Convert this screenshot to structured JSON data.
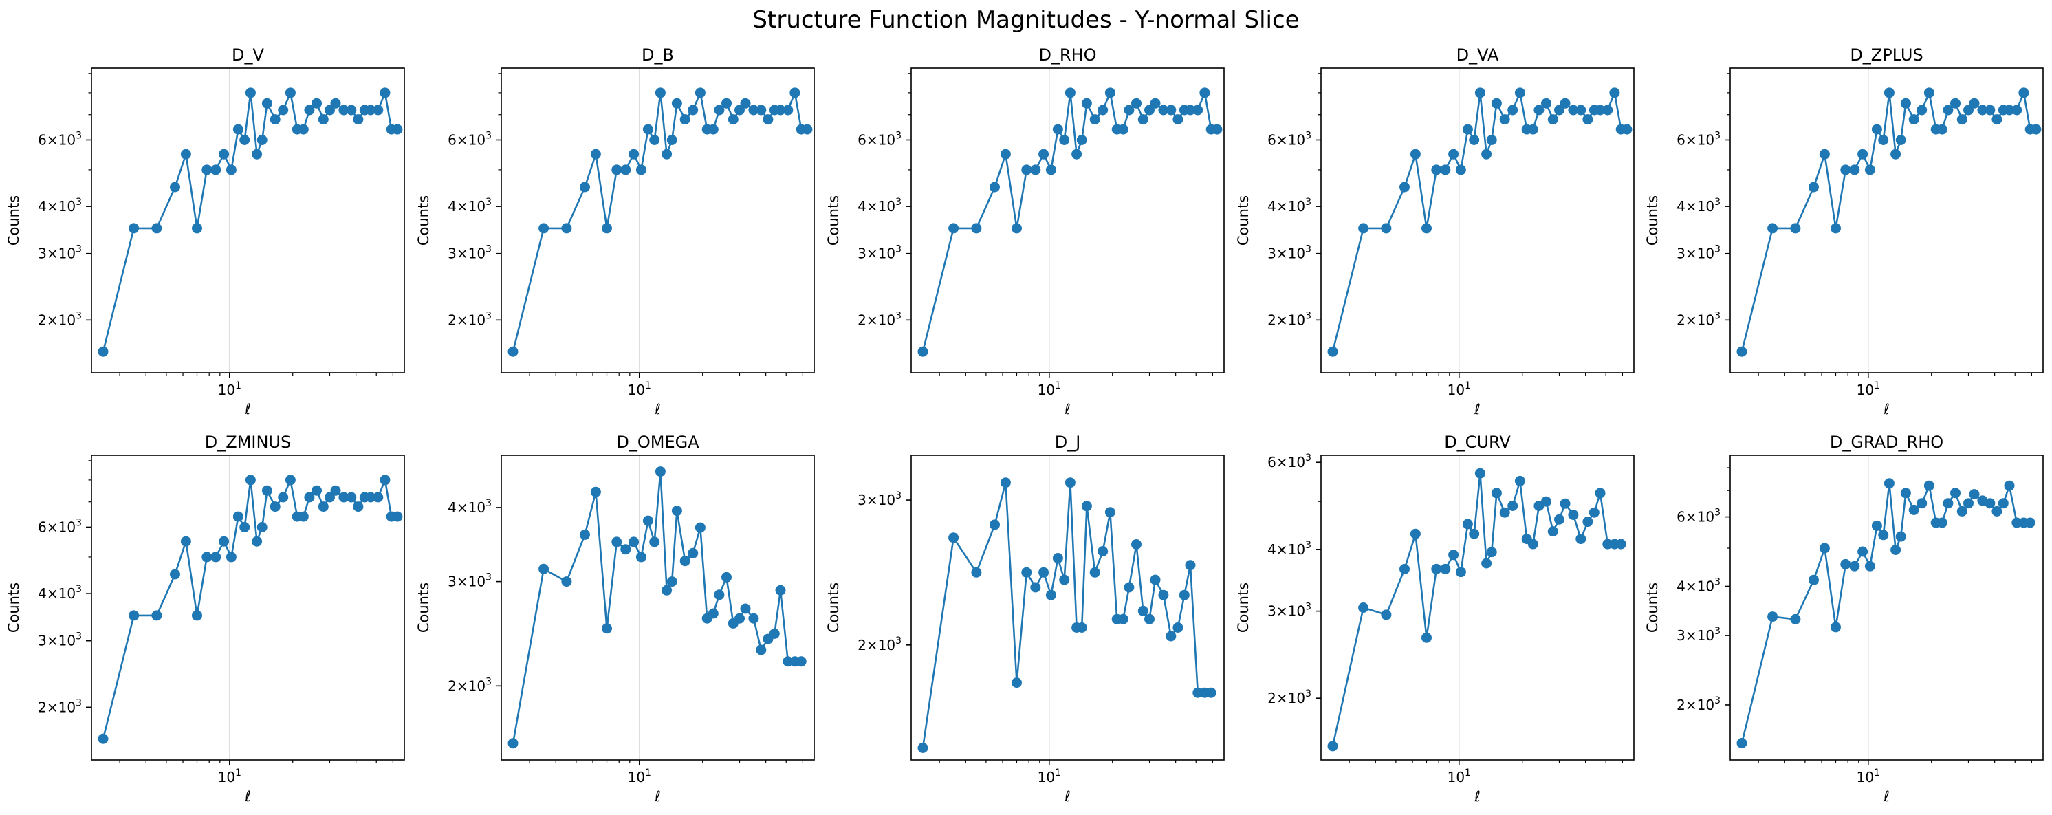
{
  "figure": {
    "title": "Structure Function Magnitudes - Y-normal Slice"
  },
  "chart_data": [
    {
      "type": "line",
      "title": "D_V",
      "xlabel": "ℓ",
      "ylabel": "Counts",
      "xscale": "log",
      "yscale": "log",
      "xlim": [
        2.2,
        68
      ],
      "ylim": [
        1450,
        9300
      ],
      "x_ticks": [
        {
          "value": 10,
          "base": "10",
          "exp": "1"
        }
      ],
      "y_ticks": [
        {
          "value": 2000,
          "base": "2×10",
          "exp": "3"
        },
        {
          "value": 3000,
          "base": "3×10",
          "exp": "3"
        },
        {
          "value": 4000,
          "base": "4×10",
          "exp": "3"
        },
        {
          "value": 6000,
          "base": "6×10",
          "exp": "3"
        }
      ],
      "vgrid": [
        10
      ],
      "color": "#1f77b4",
      "x": [
        2.5,
        3.5,
        4.5,
        5.5,
        6.2,
        7.0,
        7.8,
        8.6,
        9.4,
        10.2,
        11.0,
        11.8,
        12.6,
        13.5,
        14.3,
        15.1,
        16.5,
        18.0,
        19.5,
        21.0,
        22.5,
        24.0,
        26.0,
        28.0,
        30.0,
        32.0,
        35.0,
        38.0,
        41.0,
        44.0,
        47.0,
        51.0,
        55.0,
        59.0,
        63.0
      ],
      "y": [
        1650,
        3500,
        3500,
        4500,
        5500,
        3500,
        5000,
        5000,
        5500,
        5000,
        6400,
        6000,
        8000,
        5500,
        6000,
        7500,
        6800,
        7200,
        8000,
        6400,
        6400,
        7200,
        7500,
        6800,
        7200,
        7500,
        7200,
        7200,
        6800,
        7200,
        7200,
        7200,
        8000,
        6400,
        6400
      ]
    },
    {
      "type": "line",
      "title": "D_B",
      "xlabel": "ℓ",
      "ylabel": "Counts",
      "xscale": "log",
      "yscale": "log",
      "xlim": [
        2.2,
        68
      ],
      "ylim": [
        1450,
        9300
      ],
      "x_ticks": [
        {
          "value": 10,
          "base": "10",
          "exp": "1"
        }
      ],
      "y_ticks": [
        {
          "value": 2000,
          "base": "2×10",
          "exp": "3"
        },
        {
          "value": 3000,
          "base": "3×10",
          "exp": "3"
        },
        {
          "value": 4000,
          "base": "4×10",
          "exp": "3"
        },
        {
          "value": 6000,
          "base": "6×10",
          "exp": "3"
        }
      ],
      "vgrid": [
        10
      ],
      "color": "#1f77b4",
      "x": [
        2.5,
        3.5,
        4.5,
        5.5,
        6.2,
        7.0,
        7.8,
        8.6,
        9.4,
        10.2,
        11.0,
        11.8,
        12.6,
        13.5,
        14.3,
        15.1,
        16.5,
        18.0,
        19.5,
        21.0,
        22.5,
        24.0,
        26.0,
        28.0,
        30.0,
        32.0,
        35.0,
        38.0,
        41.0,
        44.0,
        47.0,
        51.0,
        55.0,
        59.0,
        63.0
      ],
      "y": [
        1650,
        3500,
        3500,
        4500,
        5500,
        3500,
        5000,
        5000,
        5500,
        5000,
        6400,
        6000,
        8000,
        5500,
        6000,
        7500,
        6800,
        7200,
        8000,
        6400,
        6400,
        7200,
        7500,
        6800,
        7200,
        7500,
        7200,
        7200,
        6800,
        7200,
        7200,
        7200,
        8000,
        6400,
        6400
      ]
    },
    {
      "type": "line",
      "title": "D_RHO",
      "xlabel": "ℓ",
      "ylabel": "Counts",
      "xscale": "log",
      "yscale": "log",
      "xlim": [
        2.2,
        68
      ],
      "ylim": [
        1450,
        9300
      ],
      "x_ticks": [
        {
          "value": 10,
          "base": "10",
          "exp": "1"
        }
      ],
      "y_ticks": [
        {
          "value": 2000,
          "base": "2×10",
          "exp": "3"
        },
        {
          "value": 3000,
          "base": "3×10",
          "exp": "3"
        },
        {
          "value": 4000,
          "base": "4×10",
          "exp": "3"
        },
        {
          "value": 6000,
          "base": "6×10",
          "exp": "3"
        }
      ],
      "vgrid": [
        10
      ],
      "color": "#1f77b4",
      "x": [
        2.5,
        3.5,
        4.5,
        5.5,
        6.2,
        7.0,
        7.8,
        8.6,
        9.4,
        10.2,
        11.0,
        11.8,
        12.6,
        13.5,
        14.3,
        15.1,
        16.5,
        18.0,
        19.5,
        21.0,
        22.5,
        24.0,
        26.0,
        28.0,
        30.0,
        32.0,
        35.0,
        38.0,
        41.0,
        44.0,
        47.0,
        51.0,
        55.0,
        59.0,
        63.0
      ],
      "y": [
        1650,
        3500,
        3500,
        4500,
        5500,
        3500,
        5000,
        5000,
        5500,
        5000,
        6400,
        6000,
        8000,
        5500,
        6000,
        7500,
        6800,
        7200,
        8000,
        6400,
        6400,
        7200,
        7500,
        6800,
        7200,
        7500,
        7200,
        7200,
        6800,
        7200,
        7200,
        7200,
        8000,
        6400,
        6400
      ]
    },
    {
      "type": "line",
      "title": "D_VA",
      "xlabel": "ℓ",
      "ylabel": "Counts",
      "xscale": "log",
      "yscale": "log",
      "xlim": [
        2.2,
        68
      ],
      "ylim": [
        1450,
        9300
      ],
      "x_ticks": [
        {
          "value": 10,
          "base": "10",
          "exp": "1"
        }
      ],
      "y_ticks": [
        {
          "value": 2000,
          "base": "2×10",
          "exp": "3"
        },
        {
          "value": 3000,
          "base": "3×10",
          "exp": "3"
        },
        {
          "value": 4000,
          "base": "4×10",
          "exp": "3"
        },
        {
          "value": 6000,
          "base": "6×10",
          "exp": "3"
        }
      ],
      "vgrid": [
        10
      ],
      "color": "#1f77b4",
      "x": [
        2.5,
        3.5,
        4.5,
        5.5,
        6.2,
        7.0,
        7.8,
        8.6,
        9.4,
        10.2,
        11.0,
        11.8,
        12.6,
        13.5,
        14.3,
        15.1,
        16.5,
        18.0,
        19.5,
        21.0,
        22.5,
        24.0,
        26.0,
        28.0,
        30.0,
        32.0,
        35.0,
        38.0,
        41.0,
        44.0,
        47.0,
        51.0,
        55.0,
        59.0,
        63.0
      ],
      "y": [
        1650,
        3500,
        3500,
        4500,
        5500,
        3500,
        5000,
        5000,
        5500,
        5000,
        6400,
        6000,
        8000,
        5500,
        6000,
        7500,
        6800,
        7200,
        8000,
        6400,
        6400,
        7200,
        7500,
        6800,
        7200,
        7500,
        7200,
        7200,
        6800,
        7200,
        7200,
        7200,
        8000,
        6400,
        6400
      ]
    },
    {
      "type": "line",
      "title": "D_ZPLUS",
      "xlabel": "ℓ",
      "ylabel": "Counts",
      "xscale": "log",
      "yscale": "log",
      "xlim": [
        2.2,
        68
      ],
      "ylim": [
        1450,
        9300
      ],
      "x_ticks": [
        {
          "value": 10,
          "base": "10",
          "exp": "1"
        }
      ],
      "y_ticks": [
        {
          "value": 2000,
          "base": "2×10",
          "exp": "3"
        },
        {
          "value": 3000,
          "base": "3×10",
          "exp": "3"
        },
        {
          "value": 4000,
          "base": "4×10",
          "exp": "3"
        },
        {
          "value": 6000,
          "base": "6×10",
          "exp": "3"
        }
      ],
      "vgrid": [
        10
      ],
      "color": "#1f77b4",
      "x": [
        2.5,
        3.5,
        4.5,
        5.5,
        6.2,
        7.0,
        7.8,
        8.6,
        9.4,
        10.2,
        11.0,
        11.8,
        12.6,
        13.5,
        14.3,
        15.1,
        16.5,
        18.0,
        19.5,
        21.0,
        22.5,
        24.0,
        26.0,
        28.0,
        30.0,
        32.0,
        35.0,
        38.0,
        41.0,
        44.0,
        47.0,
        51.0,
        55.0,
        59.0,
        63.0
      ],
      "y": [
        1650,
        3500,
        3500,
        4500,
        5500,
        3500,
        5000,
        5000,
        5500,
        5000,
        6400,
        6000,
        8000,
        5500,
        6000,
        7500,
        6800,
        7200,
        8000,
        6400,
        6400,
        7200,
        7500,
        6800,
        7200,
        7500,
        7200,
        7200,
        6800,
        7200,
        7200,
        7200,
        8000,
        6400,
        6400
      ]
    },
    {
      "type": "line",
      "title": "D_ZMINUS",
      "xlabel": "ℓ",
      "ylabel": "Counts",
      "xscale": "log",
      "yscale": "log",
      "xlim": [
        2.2,
        68
      ],
      "ylim": [
        1450,
        9300
      ],
      "x_ticks": [
        {
          "value": 10,
          "base": "10",
          "exp": "1"
        }
      ],
      "y_ticks": [
        {
          "value": 2000,
          "base": "2×10",
          "exp": "3"
        },
        {
          "value": 3000,
          "base": "3×10",
          "exp": "3"
        },
        {
          "value": 4000,
          "base": "4×10",
          "exp": "3"
        },
        {
          "value": 6000,
          "base": "6×10",
          "exp": "3"
        }
      ],
      "vgrid": [
        10
      ],
      "color": "#1f77b4",
      "x": [
        2.5,
        3.5,
        4.5,
        5.5,
        6.2,
        7.0,
        7.8,
        8.6,
        9.4,
        10.2,
        11.0,
        11.8,
        12.6,
        13.5,
        14.3,
        15.1,
        16.5,
        18.0,
        19.5,
        21.0,
        22.5,
        24.0,
        26.0,
        28.0,
        30.0,
        32.0,
        35.0,
        38.0,
        41.0,
        44.0,
        47.0,
        51.0,
        55.0,
        59.0,
        63.0
      ],
      "y": [
        1650,
        3500,
        3500,
        4500,
        5500,
        3500,
        5000,
        5000,
        5500,
        5000,
        6400,
        6000,
        8000,
        5500,
        6000,
        7500,
        6800,
        7200,
        8000,
        6400,
        6400,
        7200,
        7500,
        6800,
        7200,
        7500,
        7200,
        7200,
        6800,
        7200,
        7200,
        7200,
        8000,
        6400,
        6400
      ]
    },
    {
      "type": "line",
      "title": "D_OMEGA",
      "xlabel": "ℓ",
      "ylabel": "Counts",
      "xscale": "log",
      "yscale": "log",
      "xlim": [
        2.2,
        68
      ],
      "ylim": [
        1500,
        4900
      ],
      "x_ticks": [
        {
          "value": 10,
          "base": "10",
          "exp": "1"
        }
      ],
      "y_ticks": [
        {
          "value": 2000,
          "base": "2×10",
          "exp": "3"
        },
        {
          "value": 3000,
          "base": "3×10",
          "exp": "3"
        },
        {
          "value": 4000,
          "base": "4×10",
          "exp": "3"
        }
      ],
      "vgrid": [
        10
      ],
      "color": "#1f77b4",
      "x": [
        2.5,
        3.5,
        4.5,
        5.5,
        6.2,
        7.0,
        7.8,
        8.6,
        9.4,
        10.2,
        11.0,
        11.8,
        12.6,
        13.5,
        14.3,
        15.1,
        16.5,
        18.0,
        19.5,
        21.0,
        22.5,
        24.0,
        26.0,
        28.0,
        30.0,
        32.0,
        35.0,
        38.0,
        41.0,
        44.0,
        47.0,
        51.0,
        55.0,
        59.0
      ],
      "y": [
        1600,
        3150,
        3000,
        3600,
        4250,
        2500,
        3500,
        3400,
        3500,
        3300,
        3800,
        3500,
        4600,
        2900,
        3000,
        3950,
        3250,
        3350,
        3700,
        2600,
        2650,
        2850,
        3050,
        2550,
        2600,
        2700,
        2600,
        2300,
        2400,
        2450,
        2900,
        2200,
        2200,
        2200
      ]
    },
    {
      "type": "line",
      "title": "D_J",
      "xlabel": "ℓ",
      "ylabel": "Counts",
      "xscale": "log",
      "yscale": "log",
      "xlim": [
        2.2,
        68
      ],
      "ylim": [
        1450,
        3400
      ],
      "x_ticks": [
        {
          "value": 10,
          "base": "10",
          "exp": "1"
        }
      ],
      "y_ticks": [
        {
          "value": 2000,
          "base": "2×10",
          "exp": "3"
        },
        {
          "value": 3000,
          "base": "3×10",
          "exp": "3"
        }
      ],
      "vgrid": [
        10
      ],
      "color": "#1f77b4",
      "x": [
        2.5,
        3.5,
        4.5,
        5.5,
        6.2,
        7.0,
        7.8,
        8.6,
        9.4,
        10.2,
        11.0,
        11.8,
        12.6,
        13.5,
        14.3,
        15.1,
        16.5,
        18.0,
        19.5,
        21.0,
        22.5,
        24.0,
        26.0,
        28.0,
        30.0,
        32.0,
        35.0,
        38.0,
        41.0,
        44.0,
        47.0,
        51.0,
        55.0,
        59.0
      ],
      "y": [
        1500,
        2700,
        2450,
        2800,
        3150,
        1800,
        2450,
        2350,
        2450,
        2300,
        2550,
        2400,
        3150,
        2100,
        2100,
        2950,
        2450,
        2600,
        2900,
        2150,
        2150,
        2350,
        2650,
        2200,
        2150,
        2400,
        2300,
        2050,
        2100,
        2300,
        2500,
        1750,
        1750,
        1750
      ]
    },
    {
      "type": "line",
      "title": "D_CURV",
      "xlabel": "ℓ",
      "ylabel": "Counts",
      "xscale": "log",
      "yscale": "log",
      "xlim": [
        2.2,
        68
      ],
      "ylim": [
        1500,
        6200
      ],
      "x_ticks": [
        {
          "value": 10,
          "base": "10",
          "exp": "1"
        }
      ],
      "y_ticks": [
        {
          "value": 2000,
          "base": "2×10",
          "exp": "3"
        },
        {
          "value": 3000,
          "base": "3×10",
          "exp": "3"
        },
        {
          "value": 4000,
          "base": "4×10",
          "exp": "3"
        },
        {
          "value": 6000,
          "base": "6×10",
          "exp": "3"
        }
      ],
      "vgrid": [
        10
      ],
      "color": "#1f77b4",
      "x": [
        2.5,
        3.5,
        4.5,
        5.5,
        6.2,
        7.0,
        7.8,
        8.6,
        9.4,
        10.2,
        11.0,
        11.8,
        12.6,
        13.5,
        14.3,
        15.1,
        16.5,
        18.0,
        19.5,
        21.0,
        22.5,
        24.0,
        26.0,
        28.0,
        30.0,
        32.0,
        35.0,
        38.0,
        41.0,
        44.0,
        47.0,
        51.0,
        55.0,
        59.0
      ],
      "y": [
        1600,
        3050,
        2950,
        3650,
        4300,
        2650,
        3650,
        3650,
        3900,
        3600,
        4500,
        4300,
        5700,
        3750,
        3950,
        5200,
        4750,
        4900,
        5500,
        4200,
        4100,
        4900,
        5000,
        4350,
        4600,
        4950,
        4700,
        4200,
        4550,
        4750,
        5200,
        4100,
        4100,
        4100
      ]
    },
    {
      "type": "line",
      "title": "D_GRAD_RHO",
      "xlabel": "ℓ",
      "ylabel": "Counts",
      "xscale": "log",
      "yscale": "log",
      "xlim": [
        2.2,
        68
      ],
      "ylim": [
        1450,
        8600
      ],
      "x_ticks": [
        {
          "value": 10,
          "base": "10",
          "exp": "1"
        }
      ],
      "y_ticks": [
        {
          "value": 2000,
          "base": "2×10",
          "exp": "3"
        },
        {
          "value": 3000,
          "base": "3×10",
          "exp": "3"
        },
        {
          "value": 4000,
          "base": "4×10",
          "exp": "3"
        },
        {
          "value": 6000,
          "base": "6×10",
          "exp": "3"
        }
      ],
      "vgrid": [
        10
      ],
      "color": "#1f77b4",
      "x": [
        2.5,
        3.5,
        4.5,
        5.5,
        6.2,
        7.0,
        7.8,
        8.6,
        9.4,
        10.2,
        11.0,
        11.8,
        12.6,
        13.5,
        14.3,
        15.1,
        16.5,
        18.0,
        19.5,
        21.0,
        22.5,
        24.0,
        26.0,
        28.0,
        30.0,
        32.0,
        35.0,
        38.0,
        41.0,
        44.0,
        47.0,
        51.0,
        55.0,
        59.0
      ],
      "y": [
        1600,
        3350,
        3300,
        4150,
        5000,
        3150,
        4550,
        4500,
        4900,
        4500,
        5700,
        5400,
        7300,
        4950,
        5350,
        6900,
        6250,
        6500,
        7200,
        5800,
        5800,
        6500,
        6900,
        6200,
        6500,
        6850,
        6600,
        6500,
        6200,
        6500,
        7200,
        5800,
        5800,
        5800
      ]
    }
  ]
}
